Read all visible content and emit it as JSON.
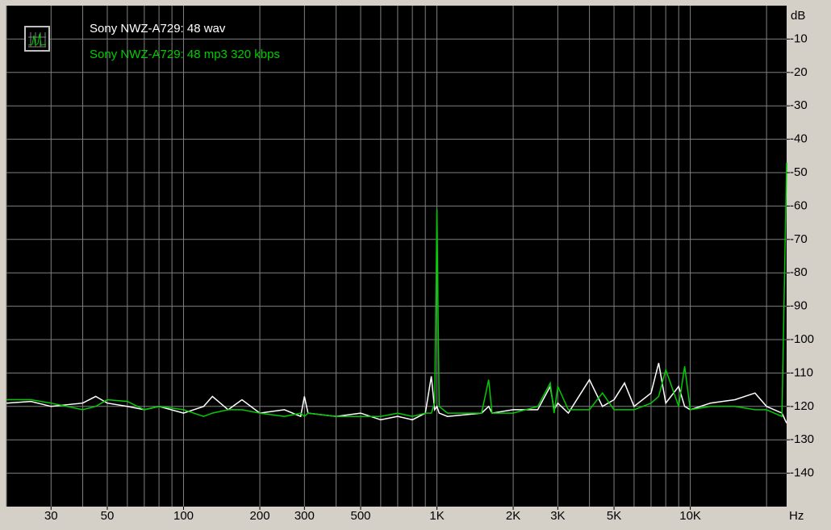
{
  "chart_data": {
    "type": "line",
    "xlabel": "Hz",
    "ylabel": "dB",
    "x": [
      20,
      25,
      30,
      40,
      45,
      50,
      60,
      70,
      80,
      100,
      120,
      130,
      150,
      170,
      200,
      250,
      290,
      300,
      310,
      400,
      500,
      600,
      700,
      800,
      900,
      950,
      980,
      1000,
      1020,
      1100,
      1500,
      1600,
      1650,
      2000,
      2500,
      2800,
      2900,
      3000,
      3300,
      4000,
      4500,
      5000,
      5500,
      6000,
      7000,
      7500,
      8000,
      9000,
      9500,
      10000,
      12000,
      15000,
      18000,
      20000,
      23000,
      24000
    ],
    "series": [
      {
        "name": "Sony NWZ-A729: 48 wav",
        "color": "#ffffff",
        "values": [
          -119,
          -118.5,
          -120,
          -119,
          -117,
          -119,
          -120,
          -121,
          -120,
          -122,
          -120,
          -117,
          -121,
          -118,
          -122,
          -121,
          -123,
          -117,
          -122,
          -123,
          -122,
          -124,
          -123,
          -124,
          -122,
          -111,
          -121,
          -120,
          -122,
          -123,
          -122,
          -120,
          -122,
          -121,
          -121,
          -114,
          -121,
          -119,
          -122,
          -112,
          -120,
          -118,
          -113,
          -120,
          -116,
          -107,
          -119,
          -114,
          -120,
          -121,
          -119,
          -118,
          -116,
          -120,
          -122,
          -125
        ]
      },
      {
        "name": "Sony NWZ-A729: 48 mp3 320 kbps",
        "color": "#00cc00",
        "values": [
          -118,
          -118,
          -119,
          -121,
          -120,
          -118,
          -118.5,
          -121,
          -120,
          -121,
          -123,
          -122,
          -121,
          -121,
          -122,
          -123,
          -122,
          -123,
          -122,
          -123,
          -123,
          -123,
          -122,
          -123,
          -122,
          -122,
          -119,
          -61,
          -120,
          -122,
          -122,
          -112,
          -122,
          -122,
          -120,
          -113,
          -122,
          -114,
          -121,
          -121,
          -116,
          -121,
          -121,
          -121,
          -119,
          -117,
          -109,
          -120,
          -108,
          -121,
          -120,
          -120,
          -121,
          -121,
          -123,
          -47
        ]
      }
    ],
    "log_x": true,
    "xlim": [
      20,
      24000
    ],
    "xticks": [
      30,
      50,
      100,
      200,
      300,
      500,
      {
        "value": 1000,
        "label": "1K"
      },
      {
        "value": 2000,
        "label": "2K"
      },
      {
        "value": 3000,
        "label": "3K"
      },
      {
        "value": 5000,
        "label": "5K"
      },
      {
        "value": 10000,
        "label": "10K"
      }
    ],
    "xminor": [
      20,
      40,
      60,
      70,
      80,
      90,
      400,
      600,
      700,
      800,
      900,
      4000,
      6000,
      7000,
      8000,
      9000,
      20000
    ],
    "ylim": [
      -150,
      0
    ],
    "yticks": [
      -10,
      -20,
      -30,
      -40,
      -50,
      -60,
      -70,
      -80,
      -90,
      -100,
      -110,
      -120,
      -130,
      -140
    ],
    "grid": true
  }
}
